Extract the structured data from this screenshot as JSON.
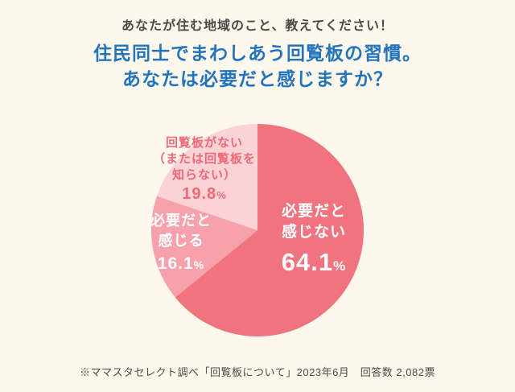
{
  "header": {
    "intro": "あなたが住む地域のこと、教えてください！",
    "title_line1": "住民同士でまわしあう回覧板の習慣。",
    "title_line2": "あなたは必要だと感じますか？"
  },
  "chart_data": {
    "type": "pie",
    "title": "住民同士でまわしあう回覧板の習慣。あなたは必要だと感じますか？",
    "start_angle": "top",
    "direction": "clockwise",
    "legend": "none",
    "slices": [
      {
        "label": "必要だと感じない",
        "value_pct": 64.1,
        "color": "#f0737f",
        "text_color": "#ffffff"
      },
      {
        "label": "必要だと感じる",
        "value_pct": 16.1,
        "color": "#f6a1ac",
        "text_color": "#ffffff"
      },
      {
        "label": "回覧板がない（または回覧板を知らない）",
        "value_pct": 19.8,
        "color": "#fbd2d6",
        "text_color": "#ec6a77"
      }
    ]
  },
  "pie": {
    "labels": [
      {
        "lines": [
          "必要だと",
          "感じない"
        ],
        "pct": "64.1",
        "pct_unit": "%"
      },
      {
        "lines": [
          "必要だと",
          "感じる"
        ],
        "pct": "16.1",
        "pct_unit": "%"
      },
      {
        "lines": [
          "回覧板がない",
          "（または回覧板を",
          "知らない）"
        ],
        "pct": "19.8",
        "pct_unit": "%"
      }
    ]
  },
  "footer": {
    "note": "※ママスタセレクト調べ「回覧板について」2023年6月　回答数 2,082票"
  },
  "colors": {
    "background": "#fdf7ec",
    "title_blue": "#2274bd",
    "intro_text": "#4c4948",
    "footer_text": "#4c4948"
  }
}
